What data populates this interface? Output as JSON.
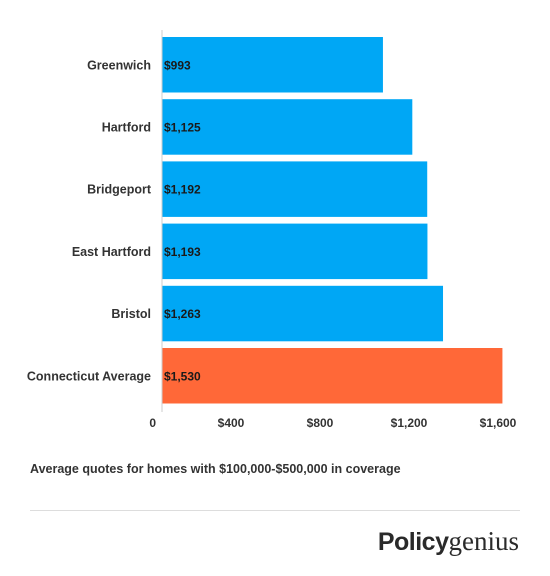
{
  "chart_data": {
    "type": "bar",
    "orientation": "horizontal",
    "categories": [
      "Greenwich",
      "Hartford",
      "Bridgeport",
      "East Hartford",
      "Bristol",
      "Connecticut Average"
    ],
    "values": [
      993,
      1125,
      1192,
      1193,
      1263,
      1530
    ],
    "value_labels": [
      "$993",
      "$1,125",
      "$1,192",
      "$1,193",
      "$1,263",
      "$1,530"
    ],
    "x_ticks": [
      0,
      400,
      800,
      1200,
      1600
    ],
    "x_tick_labels": [
      "0",
      "$400",
      "$800",
      "$1,200",
      "$1,600"
    ],
    "xlim": [
      0,
      1600
    ],
    "colors": {
      "default": "#00a7f5",
      "highlight": "#ff6838"
    },
    "highlight_category": "Connecticut Average",
    "grid": false,
    "legend": "none"
  },
  "caption": "Average quotes for homes with $100,000-$500,000 in coverage",
  "brand": {
    "bold": "Policy",
    "light": "genius"
  }
}
